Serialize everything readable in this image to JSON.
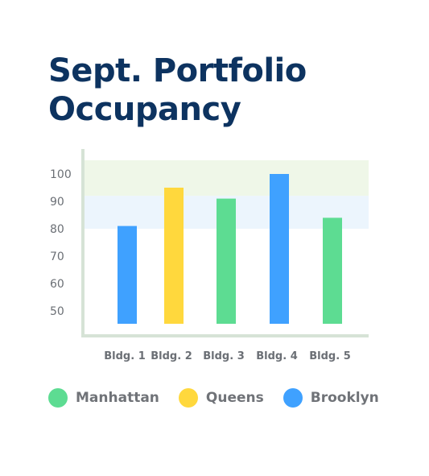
{
  "title_lines": [
    "Sept. Portfolio",
    "Occupancy"
  ],
  "colors": {
    "manhattan": "#5ddc92",
    "queens": "#ffd83d",
    "brooklyn": "#3fa1ff",
    "band_top": "#eff7e8",
    "band_mid": "#ecf5fd",
    "axis": "#d6e3d6"
  },
  "legend": [
    {
      "label": "Manhattan",
      "color_key": "manhattan"
    },
    {
      "label": "Queens",
      "color_key": "queens"
    },
    {
      "label": "Brooklyn",
      "color_key": "brooklyn"
    }
  ],
  "chart_data": {
    "type": "bar",
    "title": "Sept. Portfolio Occupancy",
    "categories": [
      "Bldg. 1",
      "Bldg. 2",
      "Bldg. 3",
      "Bldg. 4",
      "Bldg. 5"
    ],
    "values": [
      81,
      95,
      91,
      100,
      84
    ],
    "bar_groups": [
      "Brooklyn",
      "Queens",
      "Manhattan",
      "Brooklyn",
      "Manhattan"
    ],
    "yticks": [
      100,
      90,
      80,
      70,
      60,
      50
    ],
    "ylim": [
      45,
      105
    ],
    "bands": [
      {
        "from": 92,
        "to": 105,
        "color_key": "band_top"
      },
      {
        "from": 80,
        "to": 92,
        "color_key": "band_mid"
      }
    ],
    "grid": false,
    "legend_position": "bottom"
  }
}
